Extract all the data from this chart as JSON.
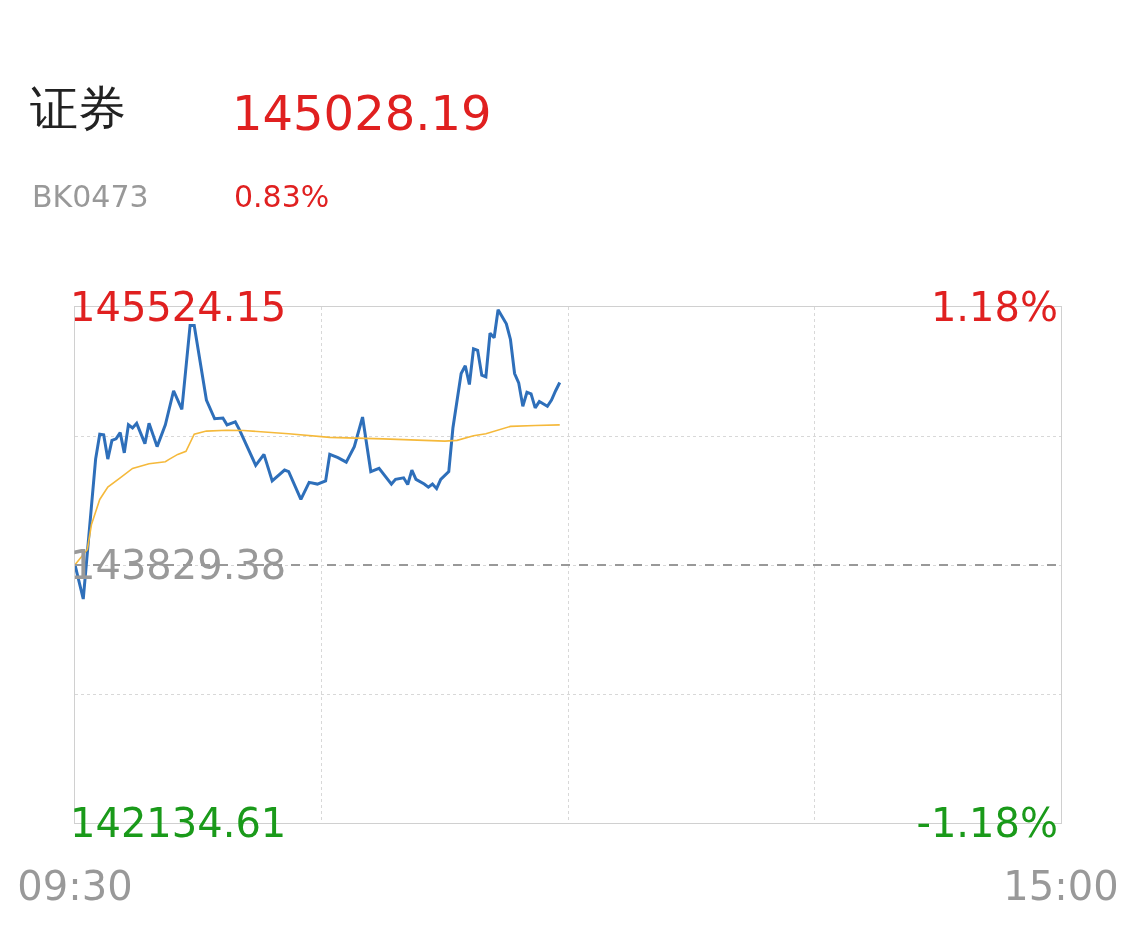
{
  "chart_data": {
    "type": "line",
    "title": "证券",
    "subtitle": "BK0473",
    "annotations": [
      "145028.19",
      "0.83%"
    ],
    "series": [
      {
        "color": "#2e6fba",
        "x": [
          9.5,
          9.546,
          9.615,
          9.638,
          9.66,
          9.683,
          9.706,
          9.729,
          9.752,
          9.775,
          9.798,
          9.821,
          9.844,
          9.89,
          9.913,
          9.958,
          10.004,
          10.05,
          10.096,
          10.142,
          10.165,
          10.233,
          10.279,
          10.325,
          10.348,
          10.394,
          10.417,
          10.508,
          10.554,
          10.6,
          10.669,
          10.692,
          10.76,
          10.806,
          10.852,
          10.898,
          10.921,
          10.967,
          11.013,
          11.058,
          11.104,
          11.15,
          11.196,
          11.265,
          11.288,
          11.333,
          11.356,
          11.379,
          11.402,
          11.448,
          11.471,
          11.494,
          11.517,
          11.54,
          11.585,
          11.608,
          11.654,
          11.677,
          11.7,
          11.723,
          11.746,
          11.769,
          11.792,
          11.815,
          11.838,
          11.86,
          11.906,
          11.929,
          11.952,
          11.975,
          11.998,
          12.021,
          12.044,
          12.067,
          12.09,
          12.135,
          12.158,
          12.181,
          12.204
        ],
        "values": [
          143831,
          143606,
          144525,
          144689,
          144684,
          144525,
          144648,
          144658,
          144699,
          144566,
          144750,
          144729,
          144760,
          144627,
          144760,
          144607,
          144750,
          144974,
          144852,
          145403,
          145403,
          144913,
          144790,
          144795,
          144750,
          144770,
          144719,
          144484,
          144556,
          144382,
          144453,
          144443,
          144260,
          144372,
          144361,
          144382,
          144556,
          144535,
          144505,
          144607,
          144801,
          144443,
          144464,
          144361,
          144392,
          144402,
          144358,
          144453,
          144392,
          144361,
          144341,
          144361,
          144331,
          144392,
          144443,
          144729,
          145087,
          145138,
          145015,
          145250,
          145240,
          145077,
          145066,
          145352,
          145322,
          145506,
          145414,
          145311,
          145087,
          145026,
          144872,
          144964,
          144954,
          144862,
          144903,
          144872,
          144913,
          144974,
          145028
        ]
      },
      {
        "color": "#f5b93b",
        "x": [
          9.5,
          9.569,
          9.592,
          9.638,
          9.683,
          9.752,
          9.821,
          9.913,
          10.004,
          10.027,
          10.073,
          10.119,
          10.165,
          10.233,
          10.348,
          10.44,
          10.692,
          10.921,
          11.219,
          11.563,
          11.631,
          11.723,
          11.792,
          11.929,
          12.067,
          12.204
        ],
        "values": [
          143831,
          143932,
          144096,
          144260,
          144341,
          144402,
          144464,
          144494,
          144508,
          144525,
          144556,
          144576,
          144689,
          144709,
          144715,
          144713,
          144692,
          144668,
          144658,
          144643,
          144648,
          144678,
          144692,
          144740,
          144746,
          144750
        ]
      }
    ],
    "xlim": [
      9.5,
      15
    ],
    "xticks": [
      {
        "value": 9.5,
        "label": "09:30"
      },
      {
        "value": 10.875,
        "label": null
      },
      {
        "value": 12.25,
        "label": null
      },
      {
        "value": 13.625,
        "label": null
      },
      {
        "value": 15,
        "label": "15:00"
      }
    ],
    "ylim": [
      142134.61,
      145524.15
    ],
    "yticks": [
      {
        "value": 142134.61,
        "label": "142134.61"
      },
      {
        "value": 142981.99,
        "label": null
      },
      {
        "value": 143829.38,
        "label": "143829.38"
      },
      {
        "value": 144676.77,
        "label": null
      },
      {
        "value": 145524.15,
        "label": "145524.15"
      }
    ],
    "y2lim": [
      -1.18,
      1.18
    ],
    "y2ticks": [
      {
        "value": -1.18,
        "label": "-1.18%"
      },
      {
        "value": 1.18,
        "label": "1.18%"
      }
    ],
    "ref_lines": [
      {
        "axis": "y",
        "value": 143829.38,
        "color": "#999999",
        "line_style": "dashed"
      }
    ],
    "grid": true,
    "marker": "none",
    "line_style": "solid"
  }
}
